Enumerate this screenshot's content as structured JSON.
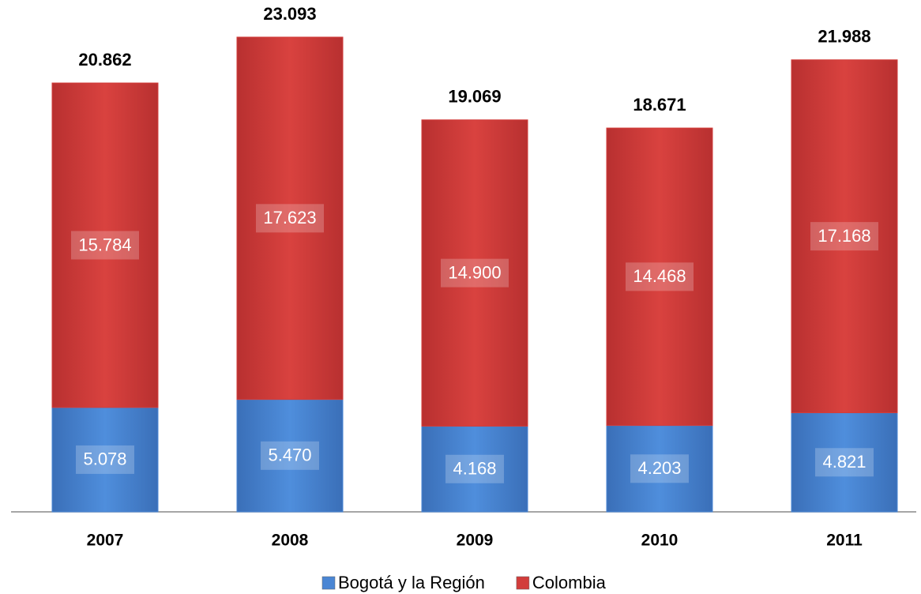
{
  "chart_data": {
    "type": "stacked-bar",
    "categories": [
      "2007",
      "2008",
      "2009",
      "2010",
      "2011"
    ],
    "series": [
      {
        "name": "Bogotá y la Región",
        "color": "#4a86d4",
        "values": [
          5078,
          5470,
          4168,
          4203,
          4821
        ],
        "value_labels": [
          "5.078",
          "5.470",
          "4.168",
          "4.203",
          "4.821"
        ]
      },
      {
        "name": "Colombia",
        "color": "#d23d3b",
        "values": [
          15784,
          17623,
          14900,
          14468,
          17168
        ],
        "value_labels": [
          "15.784",
          "17.623",
          "14.900",
          "14.468",
          "17.168"
        ]
      }
    ],
    "totals": {
      "values": [
        20862,
        23093,
        19069,
        18671,
        21988
      ],
      "value_labels": [
        "20.862",
        "23.093",
        "19.069",
        "18.671",
        "21.988"
      ]
    },
    "legend": "bottom"
  }
}
